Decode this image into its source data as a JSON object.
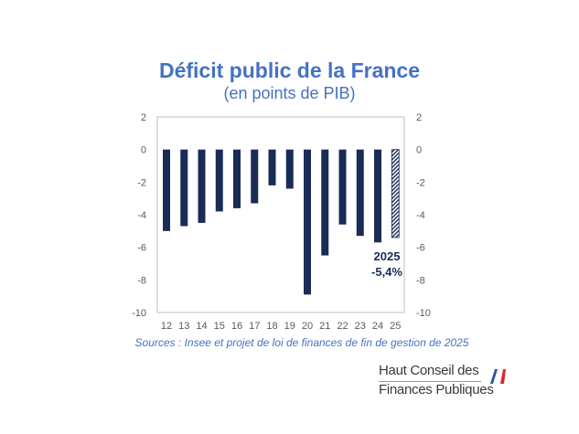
{
  "chart_data": {
    "type": "bar",
    "title": "Déficit public de la France",
    "subtitle": "(en points de PIB)",
    "categories": [
      "12",
      "13",
      "14",
      "15",
      "16",
      "17",
      "18",
      "19",
      "20",
      "21",
      "22",
      "23",
      "24",
      "25"
    ],
    "series": [
      {
        "values": [
          -5.0,
          -4.7,
          -4.5,
          -3.8,
          -3.6,
          -3.3,
          -2.2,
          -2.4,
          -8.9,
          -6.5,
          -4.6,
          -5.3,
          -5.7,
          -5.4
        ]
      }
    ],
    "forecast_index": 13,
    "ylim": [
      -10,
      2
    ],
    "yticks": [
      2,
      0,
      -2,
      -4,
      -6,
      -8,
      -10
    ],
    "y_axis_left": true,
    "y_axis_right": true,
    "annotation": {
      "year": "2025",
      "value": "-5,4%"
    },
    "bar_color": "#1a2b56",
    "forecast_color": "#1a2b56"
  },
  "source": "Sources : Insee et projet de loi de finances de fin de gestion de 2025",
  "logo": {
    "line1": "Haut Conseil des",
    "line2": "Finances Publiques"
  },
  "colors": {
    "title": "#4472c4",
    "flag_blue": "#2f55a4",
    "flag_red": "#e1262d"
  }
}
